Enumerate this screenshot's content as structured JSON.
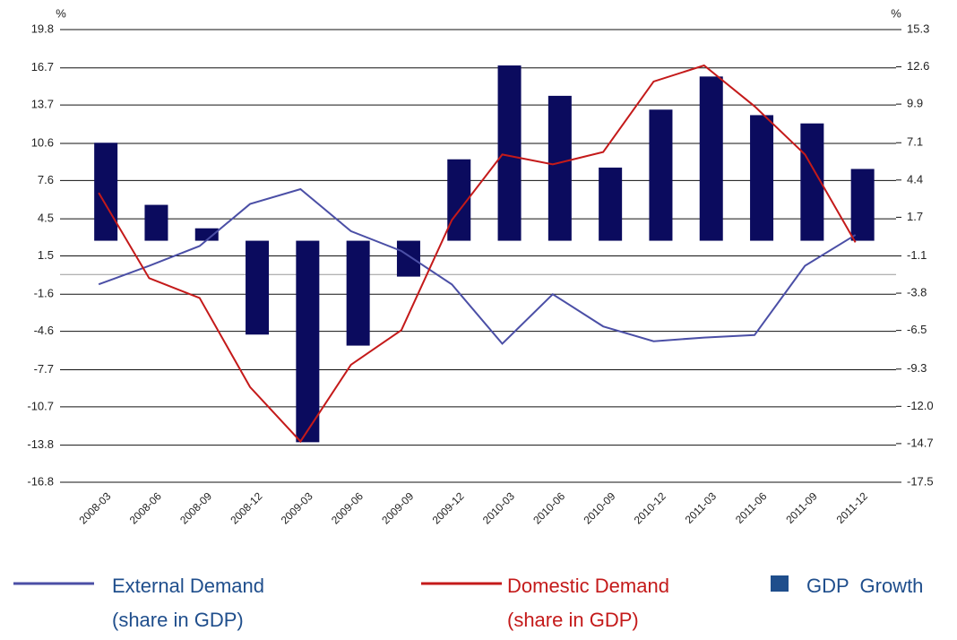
{
  "chart_data": {
    "type": "bar_line",
    "ylabel": "%",
    "y2label": "%",
    "categories": [
      "2008-03",
      "2008-06",
      "2008-09",
      "2008-12",
      "2009-03",
      "2009-06",
      "2009-09",
      "2009-12",
      "2010-03",
      "2010-06",
      "2010-09",
      "2010-12",
      "2011-03",
      "2011-06",
      "2011-09",
      "2011-12"
    ],
    "ylim": [
      -16.8,
      19.8
    ],
    "yticks": [
      -16.8,
      -13.8,
      -10.7,
      -7.7,
      -4.6,
      -1.6,
      1.5,
      4.5,
      7.6,
      10.6,
      13.7,
      16.7,
      19.8
    ],
    "y2lim": [
      -17.5,
      15.3
    ],
    "y2ticks": [
      -17.5,
      -14.7,
      {
        "value": -12,
        "label": "-12.0"
      },
      -9.3,
      -6.5,
      -3.8,
      -1.1,
      1.7,
      4.4,
      7.1,
      9.9,
      12.6,
      15.3
    ],
    "grid": true,
    "series": [
      {
        "name": "External Demand",
        "note": "(share in GDP)",
        "type": "line",
        "color": "#4b4fa6",
        "values": [
          -0.8,
          0.7,
          2.3,
          5.7,
          6.9,
          3.5,
          1.9,
          -0.8,
          -5.6,
          -1.6,
          -4.2,
          -5.4,
          -5.1,
          -4.9,
          0.7,
          3.2
        ]
      },
      {
        "name": "Domestic Demand",
        "note": "(share in GDP)",
        "type": "line",
        "color": "#c41a1a",
        "values": [
          6.6,
          -0.3,
          -1.9,
          -9.1,
          -13.5,
          -7.3,
          -4.5,
          4.4,
          9.7,
          8.9,
          9.9,
          15.6,
          16.9,
          13.6,
          9.7,
          2.6
        ]
      },
      {
        "name": "GDP  Growth",
        "type": "bar",
        "axis": "y2",
        "color": "#0b0b5e",
        "values": [
          7.1,
          2.6,
          0.9,
          -6.8,
          -14.6,
          -7.6,
          -2.6,
          5.9,
          12.7,
          10.5,
          5.3,
          9.5,
          11.9,
          9.1,
          8.5,
          5.2
        ]
      }
    ]
  }
}
